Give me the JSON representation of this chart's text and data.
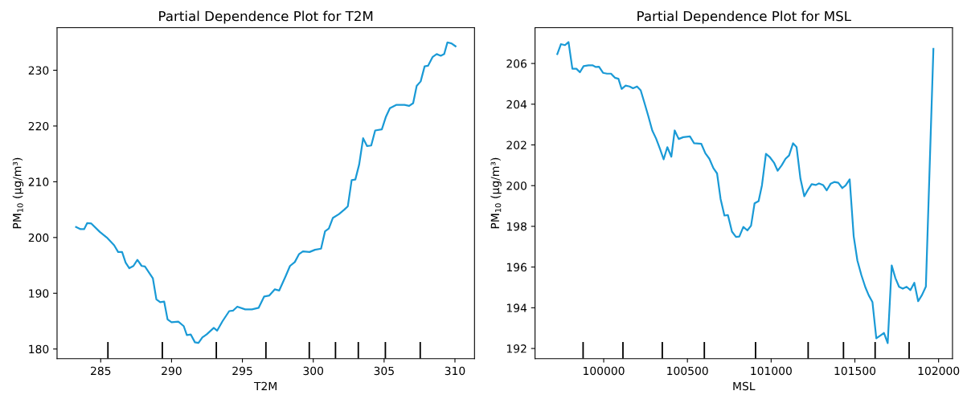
{
  "chart_data": [
    {
      "type": "line",
      "title": "Partial Dependence Plot for T2M",
      "xlabel": "T2M",
      "ylabel": "PM$_{10}$ (µg/m³)",
      "xlim": [
        281.92,
        311.38
      ],
      "ylim": [
        178.27,
        237.64
      ],
      "xticks": [
        285,
        290,
        295,
        300,
        305,
        310
      ],
      "yticks": [
        180,
        190,
        200,
        210,
        220,
        230
      ],
      "grid": false,
      "series": [
        {
          "color": "#1a9ad6",
          "x": [
            283.26,
            283.58,
            283.83,
            284.05,
            284.34,
            284.94,
            285.43,
            285.95,
            286.23,
            286.51,
            286.76,
            287.02,
            287.31,
            287.59,
            287.89,
            288.12,
            288.68,
            288.93,
            289.2,
            289.48,
            289.72,
            290.0,
            290.48,
            290.86,
            291.08,
            291.36,
            291.65,
            291.9,
            292.18,
            292.47,
            292.98,
            293.22,
            293.6,
            294.07,
            294.35,
            294.64,
            295.2,
            295.67,
            296.15,
            296.53,
            296.9,
            297.28,
            297.6,
            298.04,
            298.36,
            298.7,
            298.99,
            299.27,
            299.74,
            300.12,
            300.55,
            300.83,
            301.1,
            301.38,
            301.82,
            302.19,
            302.44,
            302.71,
            302.97,
            303.24,
            303.52,
            303.8,
            304.09,
            304.37,
            304.84,
            305.12,
            305.41,
            305.88,
            306.44,
            306.77,
            307.05,
            307.3,
            307.58,
            307.86,
            308.1,
            308.43,
            308.71,
            309.0,
            309.24,
            309.47,
            309.76,
            310.04
          ],
          "values": [
            201.9,
            201.5,
            201.5,
            202.6,
            202.5,
            201.0,
            200.0,
            198.6,
            197.4,
            197.4,
            195.5,
            194.5,
            194.9,
            196.0,
            194.9,
            194.8,
            192.7,
            188.9,
            188.4,
            188.5,
            185.3,
            184.8,
            184.9,
            184.1,
            182.5,
            182.6,
            181.2,
            181.1,
            182.1,
            182.6,
            183.8,
            183.3,
            185.0,
            186.8,
            186.9,
            187.6,
            187.1,
            187.1,
            187.4,
            189.4,
            189.6,
            190.7,
            190.5,
            193.0,
            194.9,
            195.6,
            197.0,
            197.5,
            197.4,
            197.8,
            198.0,
            201.1,
            201.6,
            203.5,
            204.2,
            205.0,
            205.6,
            210.3,
            210.4,
            213.1,
            217.8,
            216.4,
            216.5,
            219.2,
            219.4,
            221.6,
            223.2,
            223.8,
            223.8,
            223.6,
            224.1,
            227.2,
            228.0,
            230.7,
            230.8,
            232.4,
            232.9,
            232.6,
            232.9,
            235.0,
            234.8,
            234.3
          ]
        },
        {
          "type": "bar",
          "color": "#000000",
          "x": [
            285.51,
            289.35,
            293.16,
            296.66,
            299.72,
            301.57,
            303.18,
            305.09,
            307.55
          ],
          "base": [
            178.27,
            178.27,
            178.27,
            178.27,
            178.27,
            178.27,
            178.27,
            178.27,
            178.27
          ],
          "values": [
            3.0,
            3.0,
            3.0,
            3.0,
            3.0,
            3.0,
            3.0,
            3.0,
            3.0
          ]
        }
      ]
    },
    {
      "type": "line",
      "title": "Partial Dependence Plot for MSL",
      "xlabel": "MSL",
      "ylabel": "PM$_{10}$ (µg/m³)",
      "xlim": [
        99590,
        102083
      ],
      "ylim": [
        191.5,
        207.76
      ],
      "xticks": [
        100000,
        100500,
        101000,
        101500,
        102000
      ],
      "yticks": [
        192,
        194,
        196,
        198,
        200,
        202,
        204,
        206
      ],
      "grid": false,
      "series": [
        {
          "color": "#1a9ad6",
          "x": [
            99723,
            99745,
            99769,
            99790,
            99813,
            99837,
            99858,
            99880,
            99909,
            99933,
            99953,
            99972,
            99996,
            100020,
            100044,
            100067,
            100088,
            100107,
            100131,
            100155,
            100175,
            100199,
            100221,
            100245,
            100266,
            100290,
            100313,
            100337,
            100358,
            100380,
            100404,
            100424,
            100448,
            100475,
            100515,
            100540,
            100583,
            100607,
            100631,
            100655,
            100677,
            100698,
            100721,
            100742,
            100766,
            100790,
            100810,
            100834,
            100858,
            100880,
            100901,
            100925,
            100945,
            100969,
            100993,
            101017,
            101039,
            101063,
            101086,
            101107,
            101131,
            101152,
            101175,
            101198,
            101221,
            101242,
            101266,
            101286,
            101310,
            101332,
            101356,
            101377,
            101401,
            101425,
            101445,
            101469,
            101493,
            101515,
            101539,
            101563,
            101583,
            101605,
            101628,
            101651,
            101674,
            101696,
            101720,
            101742,
            101764,
            101786,
            101809,
            101832,
            101855,
            101878,
            101901,
            101924,
            101969
          ],
          "values": [
            206.46,
            206.95,
            206.9,
            207.05,
            205.74,
            205.74,
            205.57,
            205.87,
            205.91,
            205.91,
            205.83,
            205.84,
            205.54,
            205.5,
            205.5,
            205.3,
            205.25,
            204.75,
            204.91,
            204.87,
            204.78,
            204.87,
            204.68,
            204.02,
            203.43,
            202.71,
            202.31,
            201.79,
            201.29,
            201.89,
            201.42,
            202.71,
            202.29,
            202.38,
            202.42,
            202.08,
            202.05,
            201.59,
            201.32,
            200.86,
            200.6,
            199.35,
            198.53,
            198.55,
            197.74,
            197.48,
            197.5,
            197.97,
            197.8,
            198.03,
            199.13,
            199.24,
            200.01,
            201.56,
            201.39,
            201.13,
            200.73,
            201.0,
            201.32,
            201.48,
            202.08,
            201.89,
            200.34,
            199.48,
            199.81,
            200.07,
            200.03,
            200.11,
            200.03,
            199.77,
            200.1,
            200.18,
            200.14,
            199.88,
            200.01,
            200.31,
            197.51,
            196.32,
            195.6,
            195.0,
            194.61,
            194.28,
            192.5,
            192.63,
            192.76,
            192.26,
            196.08,
            195.46,
            195.03,
            194.94,
            195.03,
            194.87,
            195.23,
            194.32,
            194.63,
            195.04,
            206.72
          ]
        },
        {
          "type": "bar",
          "color": "#000000",
          "x": [
            99877,
            100115,
            100350,
            100601,
            100907,
            101221,
            101432,
            101621,
            101824
          ],
          "base": [
            191.5,
            191.5,
            191.5,
            191.5,
            191.5,
            191.5,
            191.5,
            191.5,
            191.5
          ],
          "values": [
            0.82,
            0.82,
            0.82,
            0.82,
            0.82,
            0.82,
            0.82,
            0.82,
            0.82
          ]
        }
      ]
    }
  ]
}
